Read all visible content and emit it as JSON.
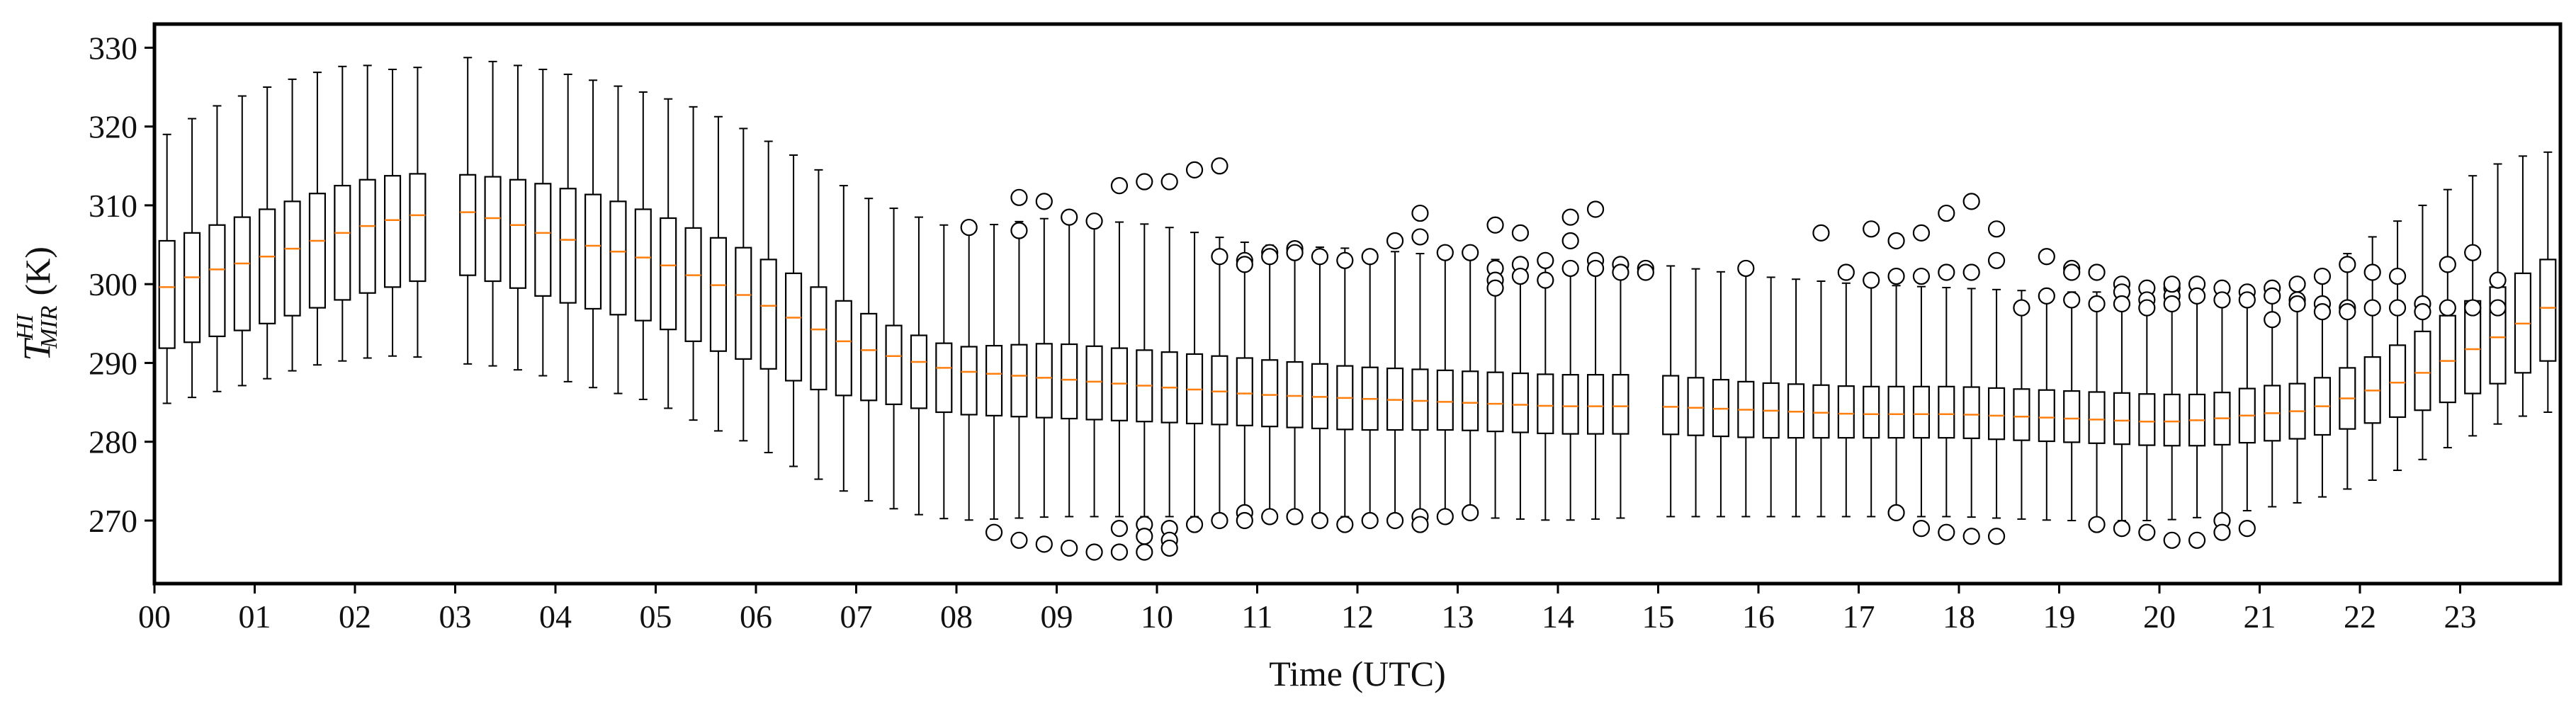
{
  "chart_data": {
    "type": "boxplot",
    "title": "",
    "xlabel": "Time (UTC)",
    "ylabel": {
      "symbol": "T",
      "superscript": "HI",
      "subscript": "MIR",
      "unit": "(K)"
    },
    "ylim": [
      262,
      333
    ],
    "yticks": [
      270,
      280,
      290,
      300,
      310,
      320,
      330
    ],
    "xlim": [
      0,
      24
    ],
    "xtick_labels": [
      "00",
      "01",
      "02",
      "03",
      "04",
      "05",
      "06",
      "07",
      "08",
      "09",
      "10",
      "11",
      "12",
      "13",
      "14",
      "15",
      "16",
      "17",
      "18",
      "19",
      "20",
      "21",
      "22",
      "23"
    ],
    "interval_hours": 0.25,
    "missing_slots": [
      {
        "from_hour": 2.75,
        "to_hour": 3.0
      },
      {
        "from_hour": 14.75,
        "to_hour": 15.0
      }
    ],
    "anchors": {
      "hour": [
        0.0,
        0.5,
        1.0,
        1.5,
        2.0,
        2.5,
        3.0,
        3.5,
        4.0,
        4.5,
        5.0,
        5.5,
        6.0,
        6.5,
        7.0,
        7.5,
        8.0,
        9.0,
        10.0,
        11.0,
        12.0,
        13.0,
        14.0,
        15.0,
        16.0,
        17.0,
        18.0,
        19.0,
        20.0,
        20.5,
        21.0,
        21.5,
        22.0,
        22.5,
        23.0,
        23.5,
        24.0
      ],
      "median": [
        299.0,
        301.5,
        303.0,
        305.0,
        307.0,
        308.5,
        309.5,
        308.0,
        306.0,
        304.5,
        303.0,
        300.5,
        298.0,
        295.0,
        292.0,
        290.5,
        289.0,
        288.0,
        287.0,
        286.0,
        285.5,
        285.0,
        284.5,
        284.5,
        284.0,
        283.5,
        283.5,
        283.0,
        282.5,
        282.8,
        283.5,
        284.0,
        286.0,
        288.0,
        291.0,
        294.0,
        298.0
      ],
      "q1": [
        291.5,
        293.0,
        294.5,
        296.5,
        298.5,
        300.0,
        301.5,
        300.0,
        298.0,
        296.5,
        295.0,
        292.0,
        290.0,
        287.0,
        285.5,
        284.5,
        283.5,
        283.0,
        282.5,
        282.0,
        281.5,
        281.5,
        281.0,
        281.0,
        280.5,
        280.5,
        280.5,
        280.0,
        279.5,
        279.5,
        280.0,
        280.5,
        282.0,
        283.5,
        285.5,
        288.0,
        291.0
      ],
      "q3": [
        305.0,
        307.0,
        309.0,
        311.0,
        313.0,
        314.0,
        314.0,
        313.5,
        312.5,
        311.0,
        309.0,
        306.5,
        304.0,
        300.5,
        297.0,
        294.0,
        292.0,
        292.5,
        291.5,
        290.5,
        289.5,
        289.0,
        288.5,
        288.5,
        287.5,
        287.0,
        287.0,
        286.5,
        286.0,
        286.0,
        287.0,
        287.5,
        290.0,
        293.0,
        297.0,
        300.5,
        304.0
      ],
      "whislo": [
        284.5,
        286.0,
        287.5,
        289.5,
        290.5,
        291.0,
        290.0,
        289.5,
        288.0,
        286.5,
        285.0,
        282.0,
        279.5,
        276.0,
        273.0,
        271.0,
        270.0,
        270.5,
        270.5,
        270.5,
        270.5,
        270.5,
        270.0,
        270.5,
        270.5,
        270.5,
        270.5,
        270.0,
        270.0,
        270.5,
        271.5,
        272.5,
        274.5,
        277.0,
        280.0,
        283.0,
        284.0
      ],
      "whishi": [
        318.0,
        322.0,
        324.5,
        326.5,
        328.0,
        327.0,
        329.0,
        328.0,
        327.0,
        325.5,
        324.0,
        322.0,
        319.0,
        315.5,
        311.5,
        309.0,
        307.0,
        308.5,
        307.5,
        305.0,
        304.5,
        303.5,
        302.5,
        302.5,
        301.0,
        300.0,
        299.5,
        299.0,
        299.0,
        299.0,
        300.0,
        300.5,
        305.0,
        309.0,
        313.0,
        316.0,
        317.0
      ]
    },
    "outliers": [
      [
        8.0,
        307.2
      ],
      [
        8.25,
        268.5
      ],
      [
        8.5,
        311.0
      ],
      [
        8.5,
        306.8
      ],
      [
        8.5,
        267.5
      ],
      [
        8.75,
        310.5
      ],
      [
        8.75,
        267.0
      ],
      [
        9.0,
        308.5
      ],
      [
        9.0,
        266.5
      ],
      [
        9.25,
        308.0
      ],
      [
        9.25,
        266.0
      ],
      [
        9.5,
        312.5
      ],
      [
        9.5,
        266.0
      ],
      [
        9.5,
        269.0
      ],
      [
        9.75,
        313.0
      ],
      [
        9.75,
        266.0
      ],
      [
        9.75,
        269.5
      ],
      [
        9.75,
        268.0
      ],
      [
        10.0,
        313.0
      ],
      [
        10.0,
        269.0
      ],
      [
        10.0,
        267.5
      ],
      [
        10.0,
        266.5
      ],
      [
        10.25,
        314.5
      ],
      [
        10.25,
        269.5
      ],
      [
        10.5,
        315.0
      ],
      [
        10.5,
        303.5
      ],
      [
        10.5,
        270.0
      ],
      [
        10.75,
        303.0
      ],
      [
        10.75,
        302.5
      ],
      [
        10.75,
        271.0
      ],
      [
        10.75,
        270.0
      ],
      [
        11.0,
        304.0
      ],
      [
        11.0,
        303.5
      ],
      [
        11.0,
        270.5
      ],
      [
        11.25,
        304.5
      ],
      [
        11.25,
        304.0
      ],
      [
        11.25,
        270.5
      ],
      [
        11.5,
        303.5
      ],
      [
        11.5,
        270.0
      ],
      [
        11.75,
        303.0
      ],
      [
        11.75,
        269.5
      ],
      [
        12.0,
        303.5
      ],
      [
        12.0,
        270.0
      ],
      [
        12.25,
        305.5
      ],
      [
        12.25,
        270.0
      ],
      [
        12.5,
        309.0
      ],
      [
        12.5,
        306.0
      ],
      [
        12.5,
        270.5
      ],
      [
        12.5,
        269.5
      ],
      [
        12.75,
        304.0
      ],
      [
        12.75,
        270.5
      ],
      [
        13.0,
        304.0
      ],
      [
        13.0,
        271.0
      ],
      [
        13.25,
        307.5
      ],
      [
        13.25,
        302.0
      ],
      [
        13.25,
        300.5
      ],
      [
        13.25,
        299.5
      ],
      [
        13.5,
        306.5
      ],
      [
        13.5,
        302.5
      ],
      [
        13.5,
        301.0
      ],
      [
        13.75,
        303.0
      ],
      [
        13.75,
        300.5
      ],
      [
        14.0,
        308.5
      ],
      [
        14.0,
        305.5
      ],
      [
        14.0,
        302.0
      ],
      [
        14.25,
        309.5
      ],
      [
        14.25,
        303.0
      ],
      [
        14.25,
        302.0
      ],
      [
        14.5,
        302.5
      ],
      [
        14.5,
        301.5
      ],
      [
        14.75,
        302.0
      ],
      [
        14.75,
        301.5
      ],
      [
        15.75,
        302.0
      ],
      [
        16.5,
        306.5
      ],
      [
        16.75,
        301.5
      ],
      [
        17.0,
        307.0
      ],
      [
        17.0,
        300.5
      ],
      [
        17.25,
        305.5
      ],
      [
        17.25,
        301.0
      ],
      [
        17.5,
        306.5
      ],
      [
        17.5,
        301.0
      ],
      [
        17.75,
        309.0
      ],
      [
        17.75,
        301.5
      ],
      [
        18.0,
        310.5
      ],
      [
        18.0,
        301.5
      ],
      [
        18.25,
        307.0
      ],
      [
        18.25,
        303.0
      ],
      [
        18.75,
        303.5
      ],
      [
        19.0,
        302.0
      ],
      [
        19.0,
        301.5
      ],
      [
        19.25,
        301.5
      ],
      [
        19.5,
        300.0
      ],
      [
        19.5,
        299.0
      ],
      [
        19.75,
        299.5
      ],
      [
        19.75,
        298.0
      ],
      [
        20.0,
        299.5
      ],
      [
        20.0,
        298.5
      ],
      [
        20.0,
        297.5
      ],
      [
        20.25,
        300.0
      ],
      [
        20.25,
        298.5
      ],
      [
        20.5,
        299.5
      ],
      [
        20.5,
        298.0
      ],
      [
        20.75,
        299.0
      ],
      [
        20.75,
        298.0
      ],
      [
        21.0,
        299.5
      ],
      [
        21.0,
        298.5
      ],
      [
        21.25,
        298.0
      ],
      [
        21.25,
        297.5
      ],
      [
        21.5,
        297.5
      ],
      [
        21.5,
        296.5
      ],
      [
        21.75,
        297.0
      ],
      [
        21.75,
        296.5
      ],
      [
        22.0,
        301.5
      ],
      [
        22.0,
        297.0
      ],
      [
        22.25,
        301.0
      ],
      [
        22.25,
        297.0
      ],
      [
        22.5,
        297.5
      ],
      [
        22.5,
        296.5
      ],
      [
        22.75,
        302.5
      ],
      [
        22.75,
        297.0
      ],
      [
        23.0,
        304.0
      ],
      [
        23.0,
        297.0
      ],
      [
        23.25,
        300.5
      ],
      [
        23.25,
        297.0
      ],
      [
        17.25,
        271.0
      ],
      [
        17.5,
        269.0
      ],
      [
        17.75,
        268.5
      ],
      [
        18.0,
        268.0
      ],
      [
        18.25,
        268.0
      ],
      [
        18.5,
        297.0
      ],
      [
        18.75,
        298.5
      ],
      [
        19.0,
        298.0
      ],
      [
        19.25,
        297.5
      ],
      [
        19.5,
        297.5
      ],
      [
        19.75,
        297.0
      ],
      [
        19.25,
        269.5
      ],
      [
        19.5,
        269.0
      ],
      [
        19.75,
        268.5
      ],
      [
        20.0,
        267.5
      ],
      [
        20.0,
        300.0
      ],
      [
        20.25,
        267.5
      ],
      [
        20.5,
        270.0
      ],
      [
        20.5,
        268.5
      ],
      [
        20.75,
        269.0
      ],
      [
        21.0,
        295.5
      ],
      [
        21.25,
        300.0
      ],
      [
        21.5,
        301.0
      ],
      [
        21.75,
        302.5
      ]
    ]
  }
}
